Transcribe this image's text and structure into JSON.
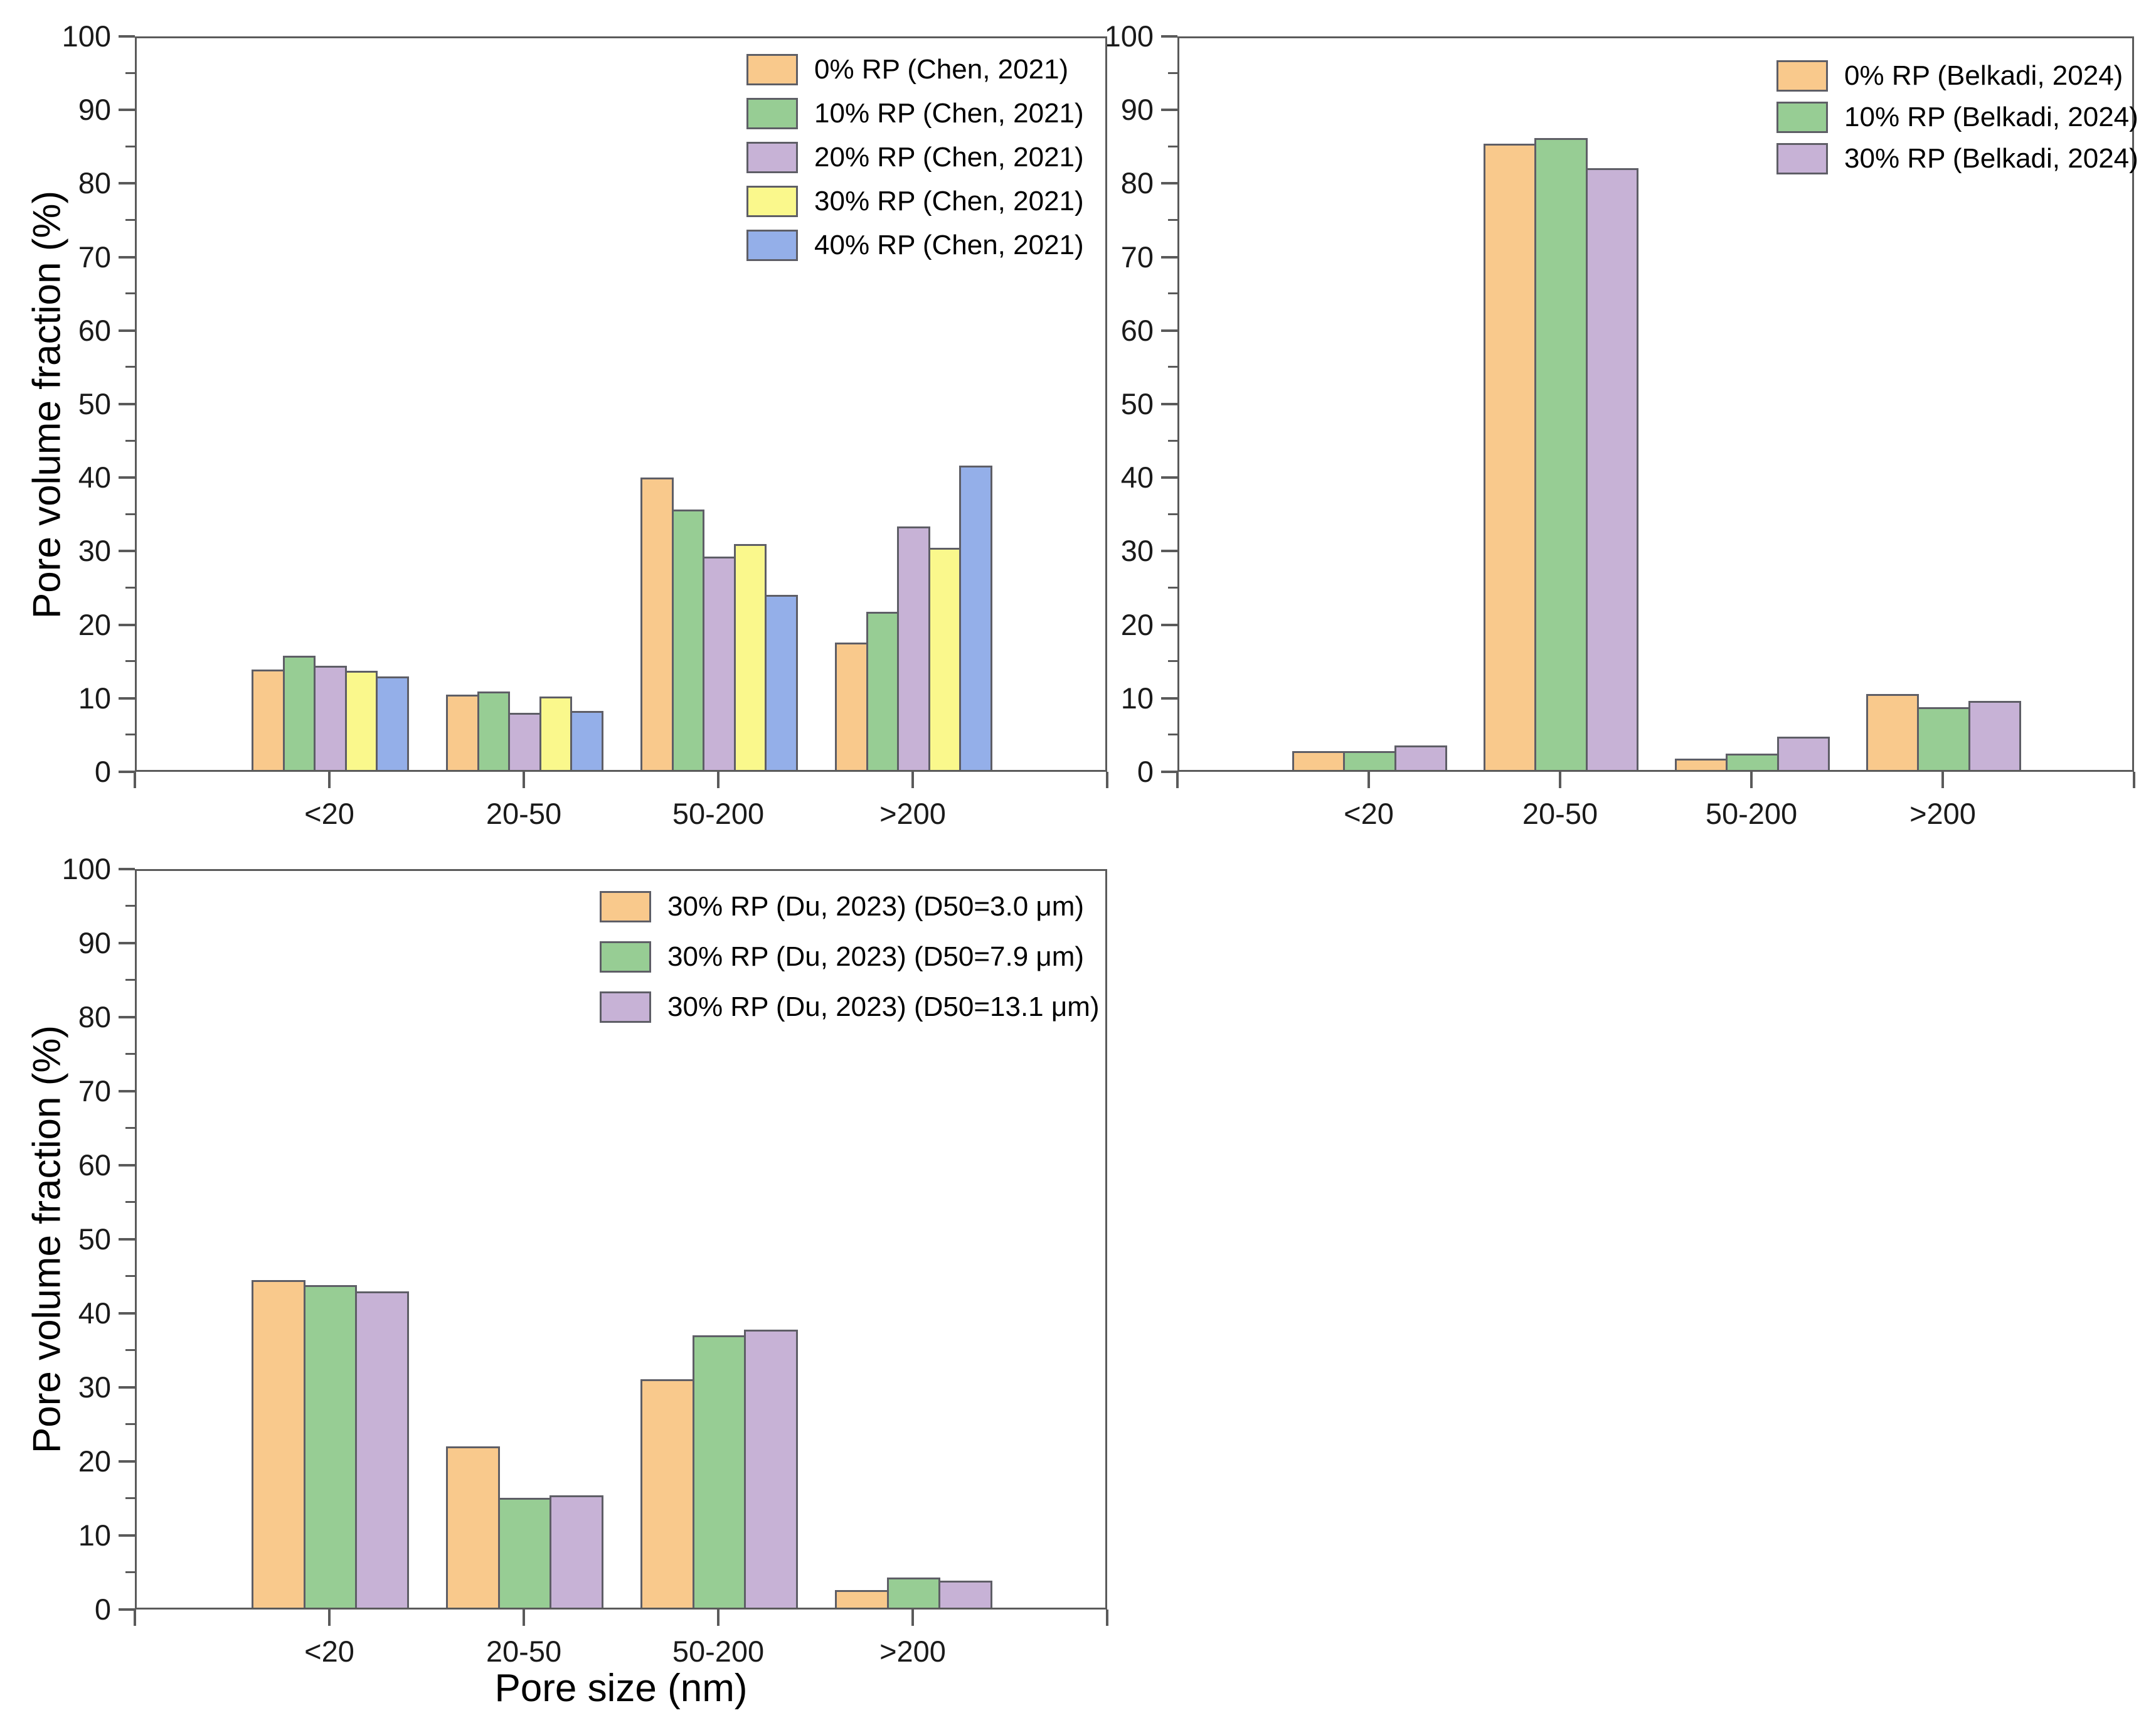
{
  "figure": {
    "background_color": "#ffffff",
    "frame_color": "#5a5a5a",
    "bar_border_color": "#5e5e66",
    "text_color": "#000000",
    "y_axis_title": "Pore volume fraction (%)",
    "x_axis_title": "Pore size (nm)"
  },
  "chart_data": [
    {
      "id": "chen-2021",
      "type": "bar",
      "title": "",
      "xlabel": "",
      "ylabel": "Pore volume fraction (%)",
      "categories": [
        "<20",
        "20-50",
        "50-200",
        ">200"
      ],
      "series": [
        {
          "name": "0% RP (Chen, 2021)",
          "color": "#F9C98C",
          "values": [
            13.9,
            10.5,
            40.0,
            17.6
          ]
        },
        {
          "name": "10% RP (Chen, 2021)",
          "color": "#97CD94",
          "values": [
            15.8,
            10.9,
            35.7,
            21.8
          ]
        },
        {
          "name": "20% RP (Chen, 2021)",
          "color": "#C7B2D6",
          "values": [
            14.4,
            8.0,
            29.3,
            33.4
          ]
        },
        {
          "name": "30% RP (Chen, 2021)",
          "color": "#FAF88C",
          "values": [
            13.7,
            10.2,
            31.0,
            30.5
          ]
        },
        {
          "name": "40% RP (Chen, 2021)",
          "color": "#94AFE9",
          "values": [
            13.0,
            8.3,
            24.1,
            41.6
          ]
        }
      ],
      "ylim": [
        0,
        100
      ],
      "yticks": [
        0,
        10,
        20,
        30,
        40,
        50,
        60,
        70,
        80,
        90,
        100
      ],
      "yminor_step": 5,
      "grid": false,
      "legend_position": "top-right-inside"
    },
    {
      "id": "belkadi-2024",
      "type": "bar",
      "title": "",
      "xlabel": "",
      "ylabel": "",
      "categories": [
        "<20",
        "20-50",
        "50-200",
        ">200"
      ],
      "series": [
        {
          "name": "0% RP (Belkadi, 2024)",
          "color": "#F9C98C",
          "values": [
            2.8,
            85.4,
            1.8,
            10.6
          ]
        },
        {
          "name": "10% RP (Belkadi, 2024)",
          "color": "#97CD94",
          "values": [
            2.8,
            86.2,
            2.5,
            8.8
          ]
        },
        {
          "name": "30% RP (Belkadi, 2024)",
          "color": "#C7B2D6",
          "values": [
            3.6,
            82.1,
            4.8,
            9.6
          ]
        }
      ],
      "ylim": [
        0,
        100
      ],
      "yticks": [
        0,
        10,
        20,
        30,
        40,
        50,
        60,
        70,
        80,
        90,
        100
      ],
      "yminor_step": 5,
      "grid": false,
      "legend_position": "top-right-inside"
    },
    {
      "id": "du-2023",
      "type": "bar",
      "title": "",
      "xlabel": "Pore size (nm)",
      "ylabel": "Pore volume fraction (%)",
      "categories": [
        "<20",
        "20-50",
        "50-200",
        ">200"
      ],
      "series": [
        {
          "name": "30% RP (Du, 2023) (D50=3.0 μm)",
          "color": "#F9C98C",
          "values": [
            44.5,
            22.0,
            31.1,
            2.6
          ]
        },
        {
          "name": "30% RP (Du, 2023) (D50=7.9 μm)",
          "color": "#97CD94",
          "values": [
            43.8,
            15.1,
            37.0,
            4.3
          ]
        },
        {
          "name": "30% RP (Du, 2023) (D50=13.1 μm)",
          "color": "#C7B2D6",
          "values": [
            43.0,
            15.4,
            37.8,
            3.9
          ]
        }
      ],
      "ylim": [
        0,
        100
      ],
      "yticks": [
        0,
        10,
        20,
        30,
        40,
        50,
        60,
        70,
        80,
        90,
        100
      ],
      "yminor_step": 5,
      "grid": false,
      "legend_position": "top-right-inside"
    }
  ]
}
